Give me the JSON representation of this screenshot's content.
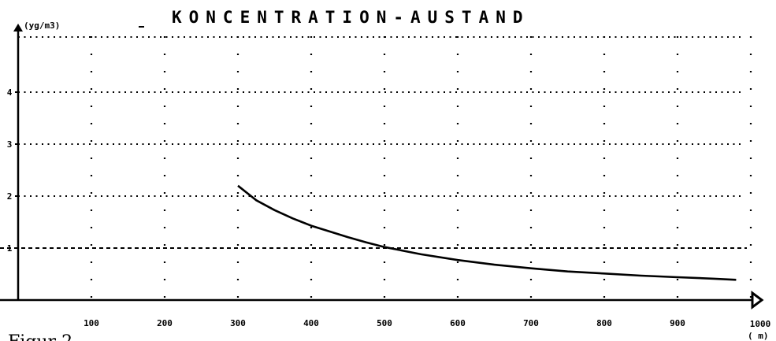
{
  "chart_data": {
    "type": "line",
    "title": "KONCENTRATION-AUSTAND",
    "ylabel": "(yg/m3)",
    "xlabel": "( m)",
    "xlim": [
      0,
      1000
    ],
    "ylim": [
      0,
      5.3
    ],
    "x_ticks": [
      "100",
      "200",
      "300",
      "400",
      "500",
      "600",
      "700",
      "800",
      "900",
      "1000"
    ],
    "y_ticks": [
      "1",
      "2",
      "3",
      "4"
    ],
    "grid": true,
    "series": [
      {
        "x": [
          300,
          325,
          350,
          375,
          400,
          425,
          450,
          475,
          500,
          550,
          600,
          650,
          700,
          750,
          800,
          850,
          900,
          950,
          980
        ],
        "y": [
          2.2,
          1.92,
          1.73,
          1.57,
          1.43,
          1.32,
          1.21,
          1.11,
          1.02,
          0.88,
          0.77,
          0.68,
          0.61,
          0.55,
          0.51,
          0.47,
          0.44,
          0.41,
          0.39
        ]
      }
    ],
    "reference_line": {
      "y": 1,
      "style": "dashed"
    }
  },
  "caption": "Figur 2"
}
